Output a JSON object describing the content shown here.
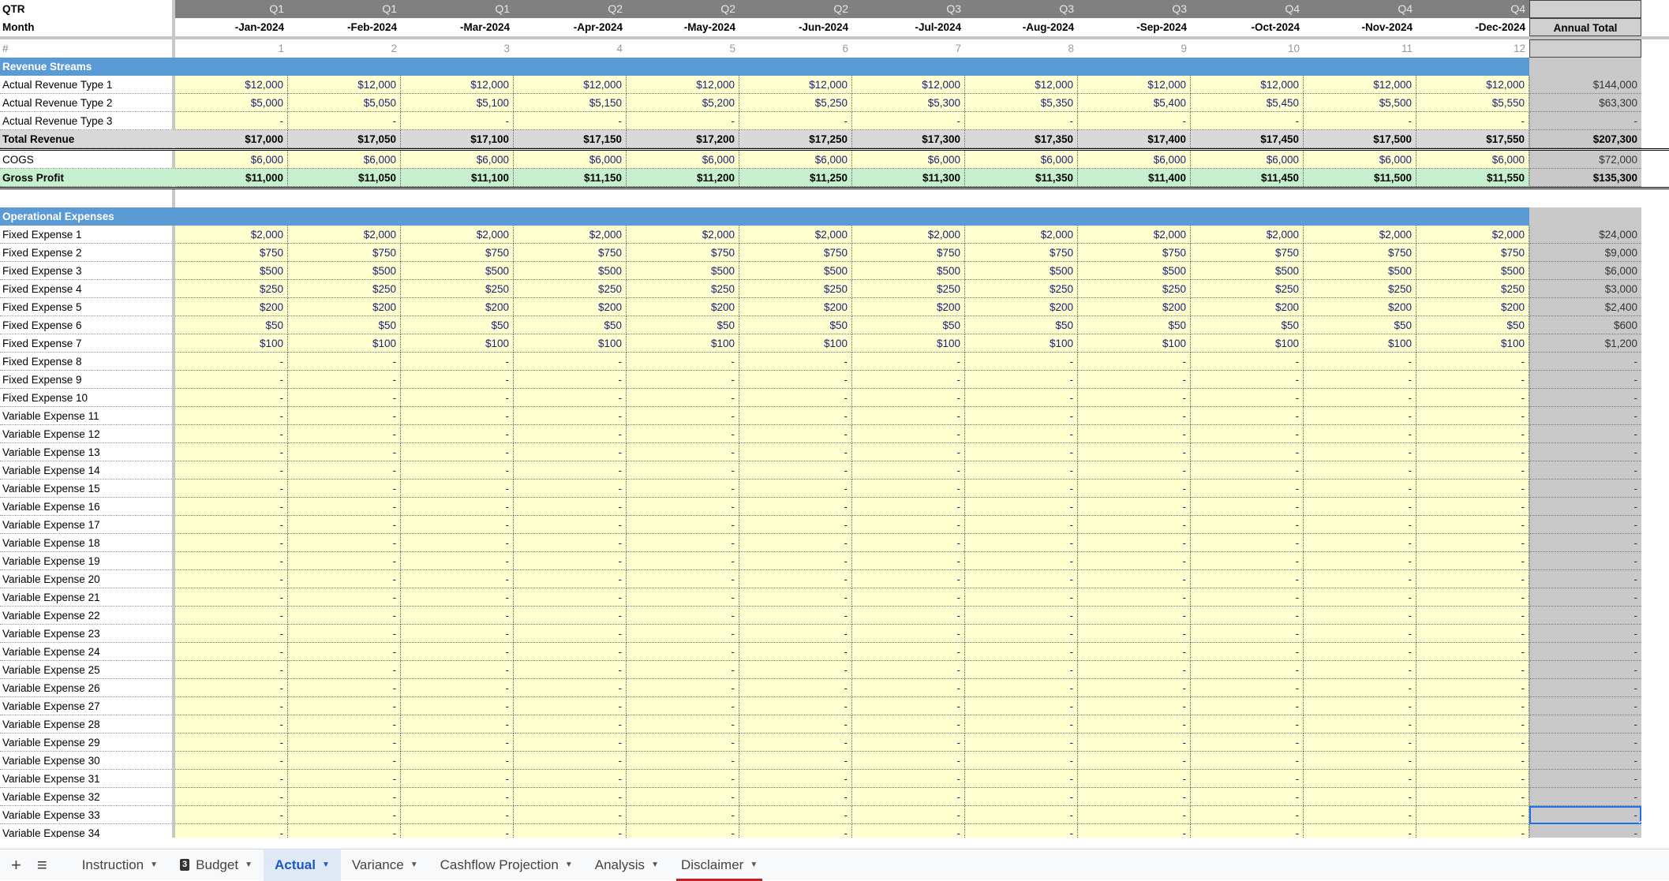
{
  "header": {
    "qtr_label": "QTR",
    "month_label": "Month",
    "number_label": "#",
    "annual_total_label": "Annual Total",
    "quarters": [
      "Q1",
      "Q1",
      "Q1",
      "Q2",
      "Q2",
      "Q2",
      "Q3",
      "Q3",
      "Q3",
      "Q4",
      "Q4",
      "Q4"
    ],
    "months": [
      "-Jan-2024",
      "-Feb-2024",
      "-Mar-2024",
      "-Apr-2024",
      "-May-2024",
      "-Jun-2024",
      "-Jul-2024",
      "-Aug-2024",
      "-Sep-2024",
      "-Oct-2024",
      "-Nov-2024",
      "-Dec-2024"
    ],
    "numbers": [
      "1",
      "2",
      "3",
      "4",
      "5",
      "6",
      "7",
      "8",
      "9",
      "10",
      "11",
      "12"
    ]
  },
  "rows": [
    {
      "type": "hdr",
      "label": "Revenue Streams"
    },
    {
      "type": "data",
      "label": "Actual Revenue Type 1",
      "values": [
        "$12,000",
        "$12,000",
        "$12,000",
        "$12,000",
        "$12,000",
        "$12,000",
        "$12,000",
        "$12,000",
        "$12,000",
        "$12,000",
        "$12,000",
        "$12,000"
      ],
      "total": "$144,000"
    },
    {
      "type": "data",
      "label": "Actual Revenue Type 2",
      "values": [
        "$5,000",
        "$5,050",
        "$5,100",
        "$5,150",
        "$5,200",
        "$5,250",
        "$5,300",
        "$5,350",
        "$5,400",
        "$5,450",
        "$5,500",
        "$5,550"
      ],
      "total": "$63,300"
    },
    {
      "type": "data",
      "label": "Actual Revenue Type 3",
      "values": [
        "-",
        "-",
        "-",
        "-",
        "-",
        "-",
        "-",
        "-",
        "-",
        "-",
        "-",
        "-"
      ],
      "total": "-"
    },
    {
      "type": "total",
      "label": "Total Revenue",
      "values": [
        "$17,000",
        "$17,050",
        "$17,100",
        "$17,150",
        "$17,200",
        "$17,250",
        "$17,300",
        "$17,350",
        "$17,400",
        "$17,450",
        "$17,500",
        "$17,550"
      ],
      "total": "$207,300"
    },
    {
      "type": "data",
      "label": "COGS",
      "values": [
        "$6,000",
        "$6,000",
        "$6,000",
        "$6,000",
        "$6,000",
        "$6,000",
        "$6,000",
        "$6,000",
        "$6,000",
        "$6,000",
        "$6,000",
        "$6,000"
      ],
      "total": "$72,000"
    },
    {
      "type": "gp",
      "label": "Gross Profit",
      "values": [
        "$11,000",
        "$11,050",
        "$11,100",
        "$11,150",
        "$11,200",
        "$11,250",
        "$11,300",
        "$11,350",
        "$11,400",
        "$11,450",
        "$11,500",
        "$11,550"
      ],
      "total": "$135,300"
    },
    {
      "type": "blank",
      "label": ""
    },
    {
      "type": "hdr",
      "label": "Operational Expenses"
    },
    {
      "type": "data",
      "label": "Fixed Expense 1",
      "values": [
        "$2,000",
        "$2,000",
        "$2,000",
        "$2,000",
        "$2,000",
        "$2,000",
        "$2,000",
        "$2,000",
        "$2,000",
        "$2,000",
        "$2,000",
        "$2,000"
      ],
      "total": "$24,000"
    },
    {
      "type": "data",
      "label": "Fixed Expense 2",
      "values": [
        "$750",
        "$750",
        "$750",
        "$750",
        "$750",
        "$750",
        "$750",
        "$750",
        "$750",
        "$750",
        "$750",
        "$750"
      ],
      "total": "$9,000"
    },
    {
      "type": "data",
      "label": "Fixed Expense 3",
      "values": [
        "$500",
        "$500",
        "$500",
        "$500",
        "$500",
        "$500",
        "$500",
        "$500",
        "$500",
        "$500",
        "$500",
        "$500"
      ],
      "total": "$6,000"
    },
    {
      "type": "data",
      "label": "Fixed Expense 4",
      "values": [
        "$250",
        "$250",
        "$250",
        "$250",
        "$250",
        "$250",
        "$250",
        "$250",
        "$250",
        "$250",
        "$250",
        "$250"
      ],
      "total": "$3,000"
    },
    {
      "type": "data",
      "label": "Fixed Expense 5",
      "values": [
        "$200",
        "$200",
        "$200",
        "$200",
        "$200",
        "$200",
        "$200",
        "$200",
        "$200",
        "$200",
        "$200",
        "$200"
      ],
      "total": "$2,400"
    },
    {
      "type": "data",
      "label": "Fixed Expense 6",
      "values": [
        "$50",
        "$50",
        "$50",
        "$50",
        "$50",
        "$50",
        "$50",
        "$50",
        "$50",
        "$50",
        "$50",
        "$50"
      ],
      "total": "$600"
    },
    {
      "type": "data",
      "label": "Fixed Expense 7",
      "values": [
        "$100",
        "$100",
        "$100",
        "$100",
        "$100",
        "$100",
        "$100",
        "$100",
        "$100",
        "$100",
        "$100",
        "$100"
      ],
      "total": "$1,200"
    },
    {
      "type": "empty",
      "label": "Fixed Expense 8"
    },
    {
      "type": "empty",
      "label": "Fixed Expense 9"
    },
    {
      "type": "empty",
      "label": "Fixed Expense 10"
    },
    {
      "type": "empty",
      "label": "Variable Expense 11"
    },
    {
      "type": "empty",
      "label": "Variable Expense 12"
    },
    {
      "type": "empty",
      "label": "Variable Expense 13"
    },
    {
      "type": "empty",
      "label": "Variable Expense 14"
    },
    {
      "type": "empty",
      "label": "Variable Expense 15"
    },
    {
      "type": "empty",
      "label": "Variable Expense 16"
    },
    {
      "type": "empty",
      "label": "Variable Expense 17"
    },
    {
      "type": "empty",
      "label": "Variable Expense 18"
    },
    {
      "type": "empty",
      "label": "Variable Expense 19"
    },
    {
      "type": "empty",
      "label": "Variable Expense 20"
    },
    {
      "type": "empty",
      "label": "Variable Expense 21"
    },
    {
      "type": "empty",
      "label": "Variable Expense 22"
    },
    {
      "type": "empty",
      "label": "Variable Expense 23"
    },
    {
      "type": "empty",
      "label": "Variable Expense 24"
    },
    {
      "type": "empty",
      "label": "Variable Expense 25"
    },
    {
      "type": "empty",
      "label": "Variable Expense 26"
    },
    {
      "type": "empty",
      "label": "Variable Expense 27"
    },
    {
      "type": "empty",
      "label": "Variable Expense 28"
    },
    {
      "type": "empty",
      "label": "Variable Expense 29"
    },
    {
      "type": "empty",
      "label": "Variable Expense 30"
    },
    {
      "type": "empty",
      "label": "Variable Expense 31"
    },
    {
      "type": "empty",
      "label": "Variable Expense 32"
    },
    {
      "type": "empty",
      "label": "Variable Expense 33",
      "selected_total": true
    },
    {
      "type": "empty",
      "label": "Variable Expense 34"
    }
  ],
  "empty_value": "-",
  "tabs": {
    "add_icon": "+",
    "menu_icon": "≡",
    "items": [
      {
        "label": "Instruction"
      },
      {
        "label": "Budget",
        "badge": "3"
      },
      {
        "label": "Actual",
        "active": true
      },
      {
        "label": "Variance"
      },
      {
        "label": "Cashflow Projection"
      },
      {
        "label": "Analysis"
      },
      {
        "label": "Disclaimer",
        "underline_color": "#c5221f"
      }
    ]
  }
}
